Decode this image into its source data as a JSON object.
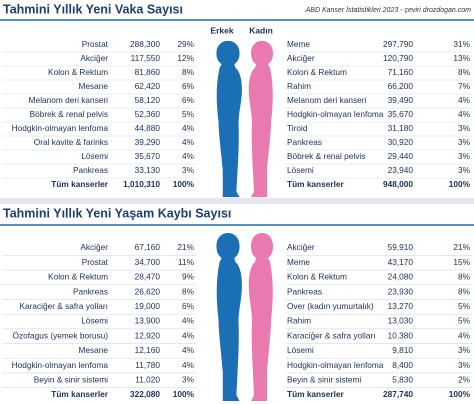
{
  "source": "ABD Kanser İstatistikleri 2023 - çeviri drozdogan.com",
  "labels": {
    "male": "Erkek",
    "female": "Kadın"
  },
  "sections": [
    {
      "title": "Tahmini Yıllık Yeni Vaka Sayısı",
      "male": [
        [
          "Prostat",
          "288,300",
          "29%"
        ],
        [
          "Akciğer",
          "117,550",
          "12%"
        ],
        [
          "Kolon & Rektum",
          "81,860",
          "8%"
        ],
        [
          "Mesane",
          "62,420",
          "6%"
        ],
        [
          "Melanom deri kanseri",
          "58,120",
          "6%"
        ],
        [
          "Böbrek & renal pelvis",
          "52,360",
          "5%"
        ],
        [
          "Hodgkin-olmayan lenfoma",
          "44,880",
          "4%"
        ],
        [
          "Oral kavite & farinks",
          "39,290",
          "4%"
        ],
        [
          "Lösemi",
          "35,670",
          "4%"
        ],
        [
          "Pankreas",
          "33,130",
          "3%"
        ],
        [
          "Tüm kanserler",
          "1,010,310",
          "100%"
        ]
      ],
      "female": [
        [
          "Meme",
          "297,790",
          "31%"
        ],
        [
          "Akciğer",
          "120,790",
          "13%"
        ],
        [
          "Kolon & Rektum",
          "71,160",
          "8%"
        ],
        [
          "Rahim",
          "66,200",
          "7%"
        ],
        [
          "Melanom deri kanseri",
          "39,490",
          "4%"
        ],
        [
          "Hodgkin-olmayan lenfoma",
          "35,670",
          "4%"
        ],
        [
          "Tiroid",
          "31,180",
          "3%"
        ],
        [
          "Pankreas",
          "30,920",
          "3%"
        ],
        [
          "Böbrek & renal pelvis",
          "29,440",
          "3%"
        ],
        [
          "Lösemi",
          "23,940",
          "3%"
        ],
        [
          "Tüm kanserler",
          "948,000",
          "100%"
        ]
      ]
    },
    {
      "title": "Tahmini Yıllık Yeni Yaşam Kaybı Sayısı",
      "male": [
        [
          "Akciğer",
          "67,160",
          "21%"
        ],
        [
          "Prostat",
          "34,700",
          "11%"
        ],
        [
          "Kolon & Rektum",
          "28,470",
          "9%"
        ],
        [
          "Pankreas",
          "26,620",
          "8%"
        ],
        [
          "Karaciğer & safra yolları",
          "19,000",
          "6%"
        ],
        [
          "Lösemi",
          "13,900",
          "4%"
        ],
        [
          "Özofagus (yemek borusu)",
          "12,920",
          "4%"
        ],
        [
          "Mesane",
          "12,160",
          "4%"
        ],
        [
          "Hodgkin-olmayan lenfoma",
          "11,780",
          "4%"
        ],
        [
          "Beyin & sinir sistemi",
          "11,020",
          "3%"
        ],
        [
          "Tüm kanserler",
          "322,080",
          "100%"
        ]
      ],
      "female": [
        [
          "Akciğer",
          "59,910",
          "21%"
        ],
        [
          "Meme",
          "43,170",
          "15%"
        ],
        [
          "Kolon & Rektum",
          "24,080",
          "8%"
        ],
        [
          "Pankreas",
          "23,930",
          "8%"
        ],
        [
          "Over (kadın yumurtalık)",
          "13,270",
          "5%"
        ],
        [
          "Rahim",
          "13,030",
          "5%"
        ],
        [
          "Karaciğer & safra yolları",
          "10,380",
          "4%"
        ],
        [
          "Lösemi",
          "9,810",
          "3%"
        ],
        [
          "Hodgkin-olmayan lenfoma",
          "8,400",
          "3%"
        ],
        [
          "Beyin & sinir sistemi",
          "5,830",
          "2%"
        ],
        [
          "Tüm kanserler",
          "287,740",
          "100%"
        ]
      ]
    }
  ]
}
